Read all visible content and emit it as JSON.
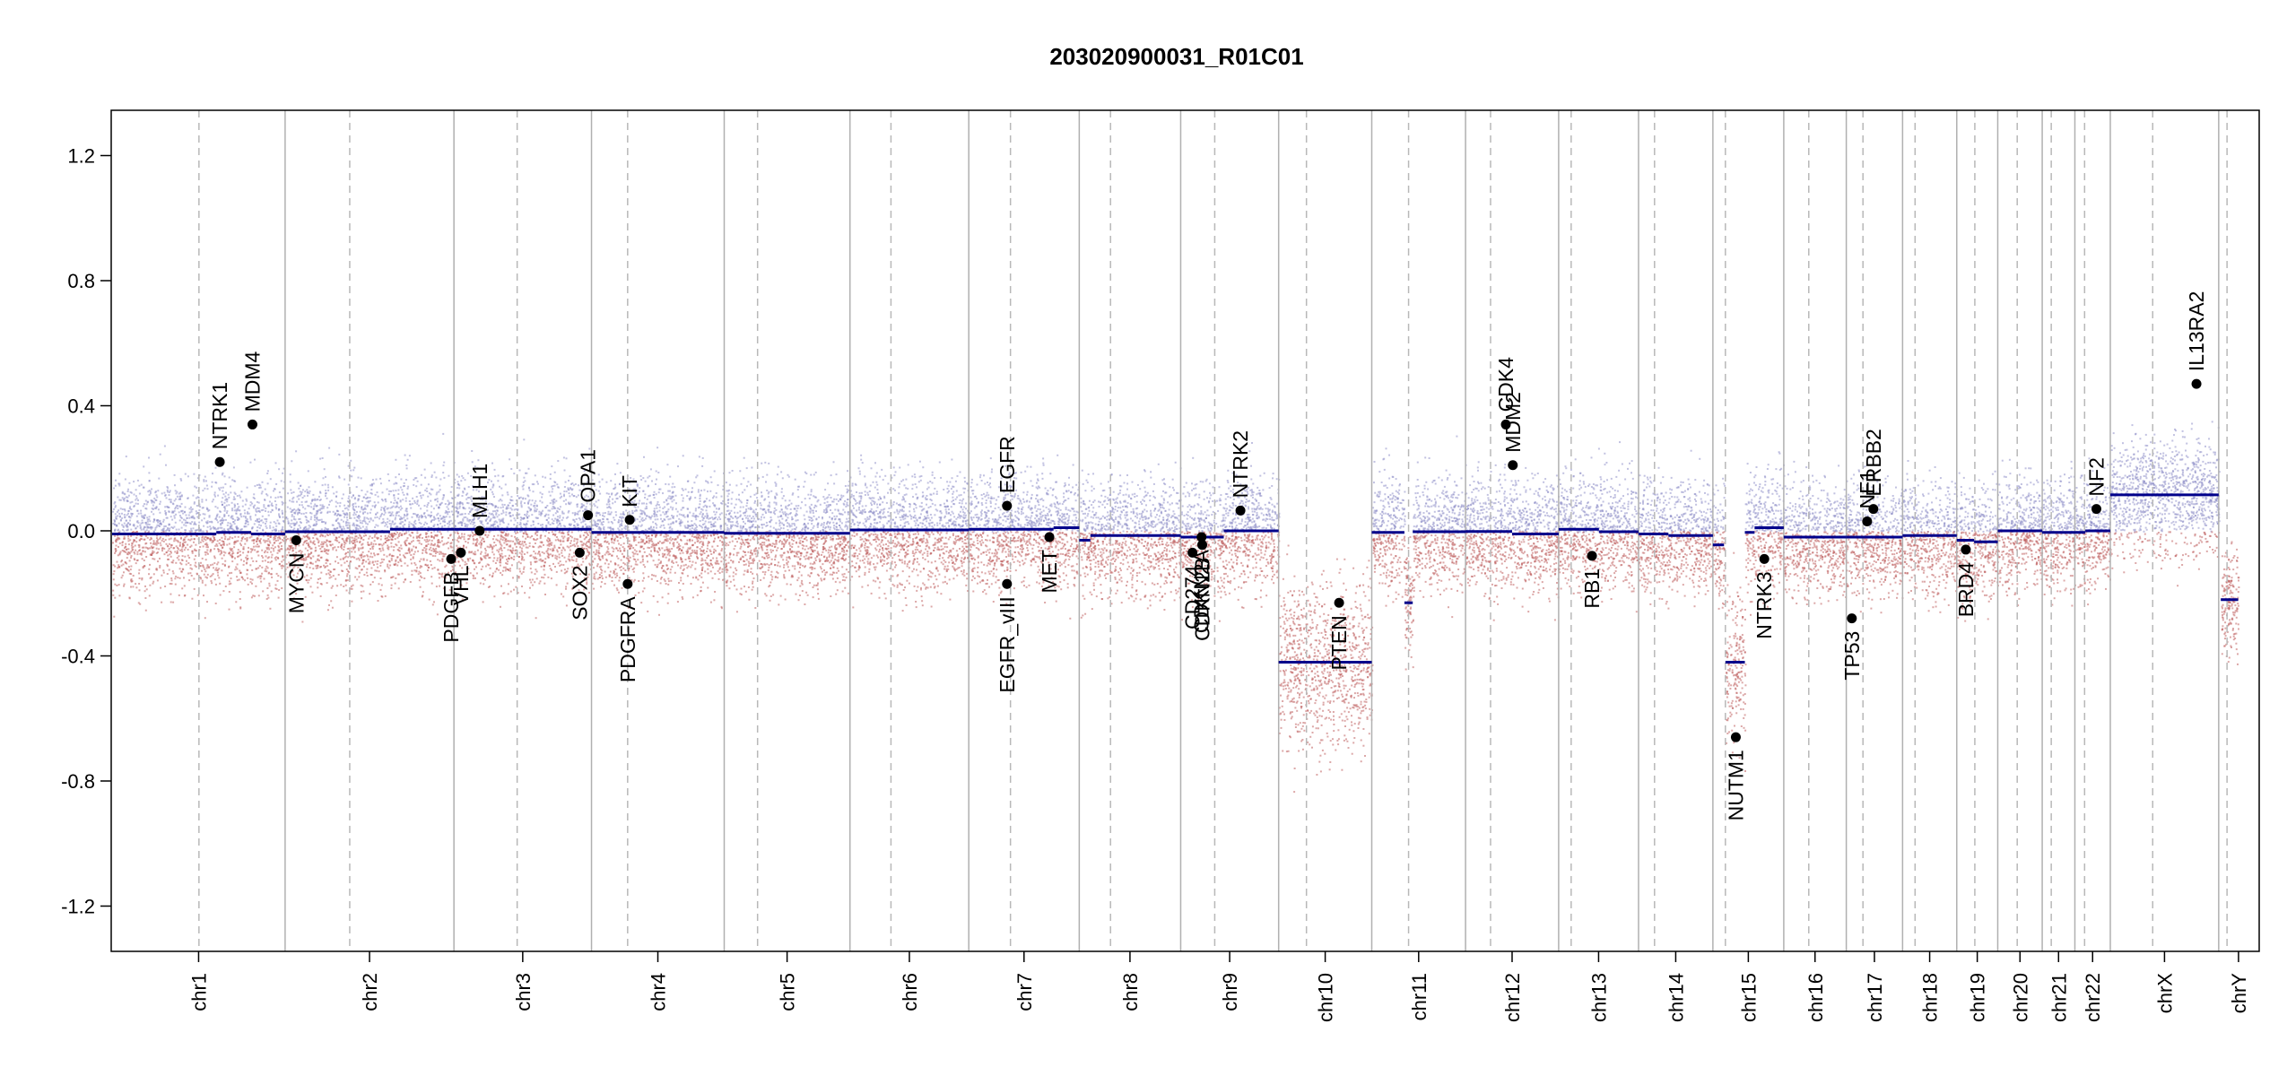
{
  "chart_data": {
    "type": "scatter",
    "title": "203020900031_R01C01",
    "ylim": [
      -1.35,
      1.35
    ],
    "y_ticks": [
      1.2,
      0.8,
      0.4,
      0.0,
      -0.4,
      -0.8,
      -1.2
    ],
    "y_tick_labels": [
      "1.2",
      "0.8",
      "0.4",
      "0.0",
      "-0.4",
      "-0.8",
      "-1.2"
    ],
    "grid": false,
    "chromosomes": [
      {
        "name": "chr1",
        "start": 0,
        "end": 249
      },
      {
        "name": "chr2",
        "start": 249,
        "end": 492
      },
      {
        "name": "chr3",
        "start": 492,
        "end": 690
      },
      {
        "name": "chr4",
        "start": 690,
        "end": 881
      },
      {
        "name": "chr5",
        "start": 881,
        "end": 1062
      },
      {
        "name": "chr6",
        "start": 1062,
        "end": 1233
      },
      {
        "name": "chr7",
        "start": 1233,
        "end": 1392
      },
      {
        "name": "chr8",
        "start": 1392,
        "end": 1538
      },
      {
        "name": "chr9",
        "start": 1538,
        "end": 1679
      },
      {
        "name": "chr10",
        "start": 1679,
        "end": 1813
      },
      {
        "name": "chr11",
        "start": 1813,
        "end": 1948
      },
      {
        "name": "chr12",
        "start": 1948,
        "end": 2082
      },
      {
        "name": "chr13",
        "start": 2082,
        "end": 2197
      },
      {
        "name": "chr14",
        "start": 2197,
        "end": 2304
      },
      {
        "name": "chr15",
        "start": 2304,
        "end": 2406
      },
      {
        "name": "chr16",
        "start": 2406,
        "end": 2496
      },
      {
        "name": "chr17",
        "start": 2496,
        "end": 2577
      },
      {
        "name": "chr18",
        "start": 2577,
        "end": 2655
      },
      {
        "name": "chr19",
        "start": 2655,
        "end": 2714
      },
      {
        "name": "chr20",
        "start": 2714,
        "end": 2778
      },
      {
        "name": "chr21",
        "start": 2778,
        "end": 2825
      },
      {
        "name": "chr22",
        "start": 2825,
        "end": 2876
      },
      {
        "name": "chrX",
        "start": 2876,
        "end": 3032
      },
      {
        "name": "chrY",
        "start": 3032,
        "end": 3089
      }
    ],
    "centromeres": [
      125,
      342,
      583,
      742,
      929,
      1121,
      1293,
      1437,
      1587,
      1719,
      1866,
      1984,
      2100,
      2220,
      2322,
      2442,
      2520,
      2595,
      2681,
      2742,
      2791,
      2839,
      2937,
      3044
    ],
    "segments": [
      {
        "start": 0,
        "end": 150,
        "value": -0.01
      },
      {
        "start": 150,
        "end": 200,
        "value": -0.005
      },
      {
        "start": 200,
        "end": 249,
        "value": -0.01
      },
      {
        "start": 249,
        "end": 400,
        "value": -0.003
      },
      {
        "start": 400,
        "end": 492,
        "value": 0.005
      },
      {
        "start": 492,
        "end": 690,
        "value": 0.005
      },
      {
        "start": 690,
        "end": 881,
        "value": -0.005
      },
      {
        "start": 881,
        "end": 1062,
        "value": -0.008
      },
      {
        "start": 1062,
        "end": 1233,
        "value": 0.003
      },
      {
        "start": 1233,
        "end": 1355,
        "value": 0.005
      },
      {
        "start": 1355,
        "end": 1392,
        "value": 0.01
      },
      {
        "start": 1392,
        "end": 1408,
        "value": -0.03
      },
      {
        "start": 1408,
        "end": 1538,
        "value": -0.015
      },
      {
        "start": 1538,
        "end": 1600,
        "value": -0.02
      },
      {
        "start": 1600,
        "end": 1679,
        "value": 0.0
      },
      {
        "start": 1679,
        "end": 1813,
        "value": -0.42
      },
      {
        "start": 1813,
        "end": 1860,
        "value": -0.005
      },
      {
        "start": 1860,
        "end": 1872,
        "value": -0.23
      },
      {
        "start": 1872,
        "end": 1948,
        "value": -0.003
      },
      {
        "start": 1948,
        "end": 2015,
        "value": -0.002
      },
      {
        "start": 2015,
        "end": 2082,
        "value": -0.01
      },
      {
        "start": 2082,
        "end": 2140,
        "value": 0.005
      },
      {
        "start": 2140,
        "end": 2197,
        "value": -0.003
      },
      {
        "start": 2197,
        "end": 2240,
        "value": -0.01
      },
      {
        "start": 2240,
        "end": 2304,
        "value": -0.015
      },
      {
        "start": 2304,
        "end": 2320,
        "value": -0.045
      },
      {
        "start": 2322,
        "end": 2350,
        "value": -0.42
      },
      {
        "start": 2350,
        "end": 2364,
        "value": -0.005
      },
      {
        "start": 2364,
        "end": 2406,
        "value": 0.01
      },
      {
        "start": 2406,
        "end": 2496,
        "value": -0.02
      },
      {
        "start": 2496,
        "end": 2577,
        "value": -0.02
      },
      {
        "start": 2577,
        "end": 2655,
        "value": -0.015
      },
      {
        "start": 2655,
        "end": 2680,
        "value": -0.03
      },
      {
        "start": 2680,
        "end": 2714,
        "value": -0.035
      },
      {
        "start": 2714,
        "end": 2778,
        "value": 0.0
      },
      {
        "start": 2778,
        "end": 2825,
        "value": -0.005
      },
      {
        "start": 2825,
        "end": 2840,
        "value": -0.005
      },
      {
        "start": 2840,
        "end": 2876,
        "value": 0.0
      },
      {
        "start": 2876,
        "end": 3032,
        "value": 0.115
      },
      {
        "start": 3035,
        "end": 3060,
        "value": -0.22
      }
    ],
    "genes": [
      {
        "name": "NTRK1",
        "pos": 155,
        "value": 0.22,
        "side": "up"
      },
      {
        "name": "MDM4",
        "pos": 202,
        "value": 0.34,
        "side": "up"
      },
      {
        "name": "MYCN",
        "pos": 265,
        "value": -0.03,
        "side": "down"
      },
      {
        "name": "PDGFB",
        "pos": 488,
        "value": -0.09,
        "side": "down"
      },
      {
        "name": "VHL",
        "pos": 502,
        "value": -0.07,
        "side": "down"
      },
      {
        "name": "MLH1",
        "pos": 529,
        "value": 0.0,
        "side": "up"
      },
      {
        "name": "SOX2",
        "pos": 673,
        "value": -0.07,
        "side": "down"
      },
      {
        "name": "OPA1",
        "pos": 685,
        "value": 0.05,
        "side": "up"
      },
      {
        "name": "KIT",
        "pos": 745,
        "value": 0.035,
        "side": "up"
      },
      {
        "name": "PDGFRA",
        "pos": 742,
        "value": -0.17,
        "side": "down"
      },
      {
        "name": "EGFR",
        "pos": 1288,
        "value": 0.08,
        "side": "up"
      },
      {
        "name": "EGFR_vIII",
        "pos": 1288,
        "value": -0.17,
        "side": "down"
      },
      {
        "name": "MET",
        "pos": 1349,
        "value": -0.02,
        "side": "down"
      },
      {
        "name": "CD274",
        "pos": 1555,
        "value": -0.07,
        "side": "down"
      },
      {
        "name": "CDKN2A",
        "pos": 1568,
        "value": -0.02,
        "side": "down"
      },
      {
        "name": "CDKN2B",
        "pos": 1569,
        "value": -0.045,
        "side": "down"
      },
      {
        "name": "NTRK2",
        "pos": 1624,
        "value": 0.065,
        "side": "up"
      },
      {
        "name": "PTEN",
        "pos": 1766,
        "value": -0.23,
        "side": "down"
      },
      {
        "name": "CDK4",
        "pos": 2006,
        "value": 0.34,
        "side": "up"
      },
      {
        "name": "MDM2",
        "pos": 2016,
        "value": 0.21,
        "side": "up"
      },
      {
        "name": "RB1",
        "pos": 2130,
        "value": -0.08,
        "side": "down"
      },
      {
        "name": "NUTM1",
        "pos": 2337,
        "value": -0.66,
        "side": "down"
      },
      {
        "name": "NTRK3",
        "pos": 2378,
        "value": -0.09,
        "side": "down"
      },
      {
        "name": "TP53",
        "pos": 2504,
        "value": -0.28,
        "side": "down"
      },
      {
        "name": "NF1",
        "pos": 2526,
        "value": 0.03,
        "side": "up"
      },
      {
        "name": "ERBB2",
        "pos": 2535,
        "value": 0.07,
        "side": "up"
      },
      {
        "name": "BRD4",
        "pos": 2668,
        "value": -0.06,
        "side": "down"
      },
      {
        "name": "NF2",
        "pos": 2856,
        "value": 0.07,
        "side": "up"
      },
      {
        "name": "IL13RA2",
        "pos": 3000,
        "value": 0.47,
        "side": "up"
      }
    ],
    "colors": {
      "segment": "#00008b",
      "gain_point": "#9090c8",
      "loss_point": "#c06060",
      "gene_point": "#000000",
      "chrom_boundary": "#b0b0b0",
      "centromere": "#b8b8b8"
    }
  }
}
